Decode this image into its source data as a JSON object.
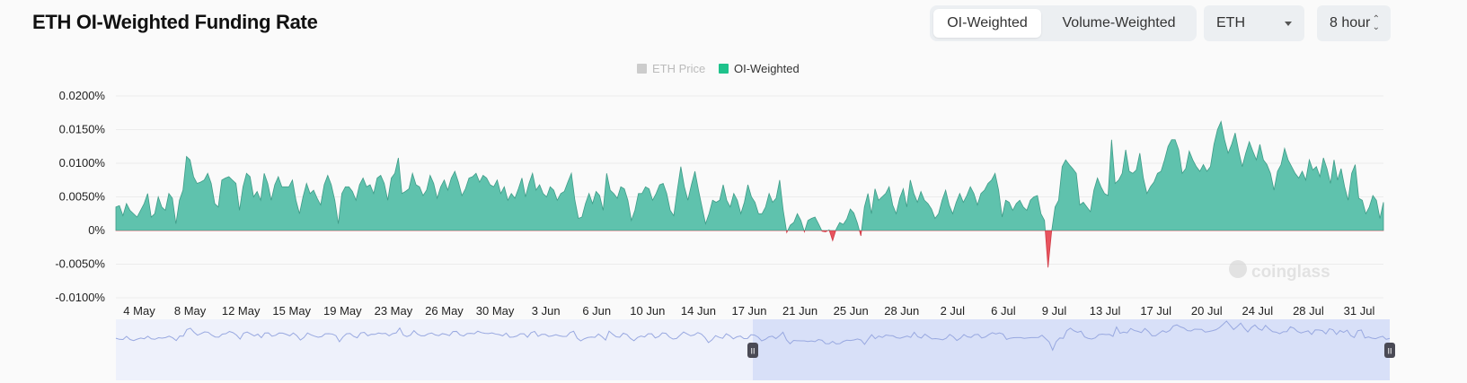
{
  "header": {
    "title": "ETH OI-Weighted Funding Rate",
    "tabs": [
      "OI-Weighted",
      "Volume-Weighted"
    ],
    "active_tab": "OI-Weighted",
    "symbol": "ETH",
    "interval": "8 hour"
  },
  "watermark": "coinglass",
  "colors": {
    "positive": "#5fc2ad",
    "negative": "#e8545e",
    "legend_inactive": "#cccccc",
    "legend_active": "#1ec28b",
    "navigator_fill": "#dbe3fb"
  },
  "chart_data": {
    "type": "area",
    "title": "ETH OI-Weighted Funding Rate",
    "legend": [
      {
        "name": "ETH Price",
        "active": false
      },
      {
        "name": "OI-Weighted",
        "active": true
      }
    ],
    "legend_placement": "top-center",
    "grid": true,
    "y_ticks": [
      "0.0200%",
      "0.0150%",
      "0.0100%",
      "0.0050%",
      "0%",
      "-0.0050%",
      "-0.0100%"
    ],
    "ylim": [
      -0.01,
      0.02
    ],
    "y_unit": "%",
    "x_ticks": [
      "4 May",
      "8 May",
      "12 May",
      "15 May",
      "19 May",
      "23 May",
      "26 May",
      "30 May",
      "3 Jun",
      "6 Jun",
      "10 Jun",
      "14 Jun",
      "17 Jun",
      "21 Jun",
      "25 Jun",
      "28 Jun",
      "2 Jul",
      "6 Jul",
      "9 Jul",
      "13 Jul",
      "17 Jul",
      "20 Jul",
      "24 Jul",
      "28 Jul",
      "31 Jul"
    ],
    "series": [
      {
        "name": "OI-Weighted",
        "values": [
          0.0035,
          0.0037,
          0.0022,
          0.004,
          0.003,
          0.0025,
          0.002,
          0.003,
          0.004,
          0.0055,
          0.002,
          0.0025,
          0.005,
          0.0035,
          0.003,
          0.0055,
          0.0048,
          0.001,
          0.0045,
          0.006,
          0.011,
          0.0105,
          0.008,
          0.007,
          0.0072,
          0.0075,
          0.0085,
          0.007,
          0.004,
          0.0035,
          0.0075,
          0.0078,
          0.008,
          0.0075,
          0.007,
          0.003,
          0.0065,
          0.0085,
          0.008,
          0.005,
          0.0058,
          0.0045,
          0.0085,
          0.007,
          0.0045,
          0.0068,
          0.008,
          0.0065,
          0.0065,
          0.0065,
          0.0075,
          0.0045,
          0.0025,
          0.005,
          0.007,
          0.0055,
          0.006,
          0.0048,
          0.0038,
          0.0068,
          0.0082,
          0.0068,
          0.0045,
          0.001,
          0.0055,
          0.0065,
          0.0065,
          0.0058,
          0.0045,
          0.0068,
          0.0078,
          0.0065,
          0.0068,
          0.0055,
          0.0078,
          0.0082,
          0.007,
          0.0045,
          0.0078,
          0.0085,
          0.0108,
          0.0055,
          0.0058,
          0.0062,
          0.0085,
          0.0068,
          0.0065,
          0.0052,
          0.006,
          0.0082,
          0.007,
          0.0048,
          0.0065,
          0.0075,
          0.006,
          0.0078,
          0.0088,
          0.0072,
          0.0052,
          0.0062,
          0.0078,
          0.008,
          0.0085,
          0.0072,
          0.0082,
          0.0078,
          0.0068,
          0.0065,
          0.0075,
          0.0055,
          0.0065,
          0.0045,
          0.0055,
          0.0048,
          0.0062,
          0.0078,
          0.005,
          0.007,
          0.0085,
          0.006,
          0.0068,
          0.0055,
          0.005,
          0.0065,
          0.006,
          0.0045,
          0.0055,
          0.0058,
          0.0072,
          0.0085,
          0.0045,
          0.0018,
          0.002,
          0.004,
          0.0055,
          0.004,
          0.0058,
          0.0052,
          0.003,
          0.0085,
          0.006,
          0.0055,
          0.0048,
          0.0065,
          0.0062,
          0.0045,
          0.0015,
          0.003,
          0.0055,
          0.0055,
          0.0065,
          0.0062,
          0.0045,
          0.0055,
          0.0068,
          0.007,
          0.0055,
          0.003,
          0.0022,
          0.006,
          0.0095,
          0.0065,
          0.0045,
          0.0068,
          0.0088,
          0.006,
          0.0035,
          0.001,
          0.0025,
          0.0045,
          0.0042,
          0.0045,
          0.0068,
          0.0045,
          0.0035,
          0.0055,
          0.0045,
          0.0025,
          0.0042,
          0.0068,
          0.005,
          0.0042,
          0.0025,
          0.0025,
          0.0035,
          0.0055,
          0.0042,
          0.0048,
          0.0075,
          0.003,
          -0.0003,
          0.0008,
          0.0012,
          0.0025,
          0.0015,
          -0.0002,
          0.0015,
          0.0018,
          0.002,
          0.001,
          -0.0001,
          -0.0002,
          0.0001,
          -0.0015,
          0.0002,
          0.0012,
          0.0009,
          0.0017,
          0.0032,
          0.0026,
          0.0011,
          -0.0008,
          0.0035,
          0.0055,
          0.0025,
          0.0062,
          0.0045,
          0.005,
          0.0055,
          0.0065,
          0.0038,
          0.0025,
          0.0048,
          0.0062,
          0.0035,
          0.0075,
          0.0055,
          0.0042,
          0.0058,
          0.0045,
          0.004,
          0.0032,
          0.0018,
          0.0025,
          0.0045,
          0.006,
          0.0038,
          0.0025,
          0.0042,
          0.0055,
          0.0042,
          0.0052,
          0.0065,
          0.0055,
          0.0038,
          0.0055,
          0.006,
          0.007,
          0.0075,
          0.0085,
          0.006,
          0.002,
          0.0045,
          0.0042,
          0.003,
          0.004,
          0.0045,
          0.0035,
          0.003,
          0.0045,
          0.005,
          0.0052,
          0.0025,
          0.0015,
          -0.0055,
          -0.0002,
          0.0035,
          0.0045,
          0.0095,
          0.0105,
          0.0098,
          0.0092,
          0.0085,
          0.0038,
          0.0042,
          0.0035,
          0.0028,
          0.006,
          0.0078,
          0.0065,
          0.0055,
          0.0052,
          0.0135,
          0.007,
          0.0075,
          0.0085,
          0.012,
          0.0088,
          0.0085,
          0.009,
          0.0115,
          0.0078,
          0.0055,
          0.0065,
          0.0072,
          0.0085,
          0.0088,
          0.0105,
          0.0125,
          0.0135,
          0.0135,
          0.012,
          0.0085,
          0.0092,
          0.0118,
          0.0105,
          0.0095,
          0.0088,
          0.0098,
          0.0088,
          0.0095,
          0.0128,
          0.015,
          0.0162,
          0.0135,
          0.0115,
          0.0128,
          0.0145,
          0.0118,
          0.0095,
          0.0115,
          0.0132,
          0.0118,
          0.0105,
          0.0128,
          0.0105,
          0.0098,
          0.0085,
          0.006,
          0.0088,
          0.0098,
          0.0122,
          0.0105,
          0.0095,
          0.0085,
          0.0078,
          0.0088,
          0.0075,
          0.0105,
          0.009,
          0.0095,
          0.008,
          0.0108,
          0.0092,
          0.007,
          0.0105,
          0.0075,
          0.0092,
          0.0065,
          0.0045,
          0.0085,
          0.0098,
          0.0048,
          0.0045,
          0.0025,
          0.0035,
          0.0052,
          0.0045,
          0.0018,
          0.0042
        ]
      }
    ]
  },
  "navigator": {
    "selection_start_label": "17 Jun",
    "selection_end_label": "31 Jul"
  }
}
